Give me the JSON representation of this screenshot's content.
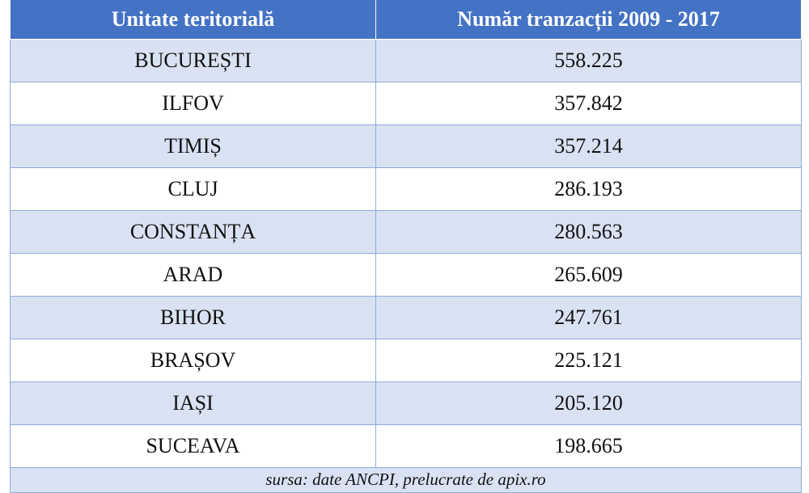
{
  "table": {
    "headers": [
      "Unitate teritorială",
      "Număr tranzacții 2009 - 2017"
    ],
    "rows": [
      {
        "unit": "BUCUREȘTI",
        "transactions": "558.225"
      },
      {
        "unit": "ILFOV",
        "transactions": "357.842"
      },
      {
        "unit": "TIMIȘ",
        "transactions": "357.214"
      },
      {
        "unit": "CLUJ",
        "transactions": "286.193"
      },
      {
        "unit": "CONSTANȚA",
        "transactions": "280.563"
      },
      {
        "unit": "ARAD",
        "transactions": "265.609"
      },
      {
        "unit": "BIHOR",
        "transactions": "247.761"
      },
      {
        "unit": "BRAȘOV",
        "transactions": "225.121"
      },
      {
        "unit": "IAȘI",
        "transactions": "205.120"
      },
      {
        "unit": "SUCEAVA",
        "transactions": "198.665"
      }
    ],
    "source_note": "sursa: date ANCPI, prelucrate de apix.ro"
  },
  "colors": {
    "header_background": "#4472c4",
    "header_text": "#ffffff",
    "band_background": "#d9e2f3",
    "grid_line": "#8eaadb"
  }
}
